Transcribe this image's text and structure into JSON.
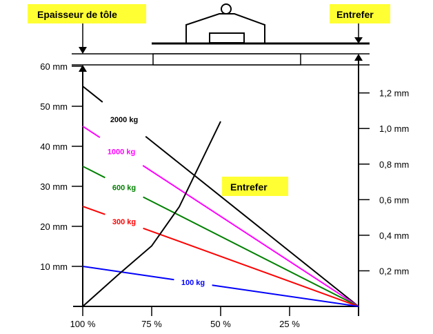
{
  "labels": {
    "sheet_thickness": "Epaisseur de tôle",
    "air_gap_top": "Entrefer",
    "air_gap_curve": "Entrefer"
  },
  "colors": {
    "label_box": "#ffff33",
    "axis": "#000000",
    "curve_2000": "#000000",
    "curve_1000": "#ff00ff",
    "curve_600": "#008000",
    "curve_300": "#ff0000",
    "curve_100": "#0000ff",
    "air_gap_curve": "#000000"
  },
  "chart_data": {
    "type": "line",
    "x": [
      "100 %",
      "75 %",
      "50 %",
      "25 %",
      ""
    ],
    "x_values": [
      100,
      75,
      50,
      25,
      0
    ],
    "xlim": [
      100,
      0
    ],
    "left_axis": {
      "ticks": [
        "10 mm",
        "20 mm",
        "30 mm",
        "40 mm",
        "50 mm",
        "60 mm"
      ],
      "tick_values": [
        10,
        20,
        30,
        40,
        50,
        60
      ],
      "ylim": [
        0,
        60
      ]
    },
    "right_axis": {
      "ticks": [
        "0,2 mm",
        "0,4 mm",
        "0,6 mm",
        "0,8 mm",
        "1,0 mm",
        "1,2 mm"
      ],
      "tick_values": [
        0.2,
        0.4,
        0.6,
        0.8,
        1.0,
        1.2
      ],
      "ylim": [
        0,
        1.35
      ]
    },
    "series": [
      {
        "name": "2000 kg",
        "color": "#000000",
        "points": [
          [
            100,
            55
          ],
          [
            0,
            0
          ]
        ],
        "label_at": 85
      },
      {
        "name": "1000 kg",
        "color": "#ff00ff",
        "points": [
          [
            100,
            45
          ],
          [
            0,
            0
          ]
        ],
        "label_at": 86
      },
      {
        "name": "600 kg",
        "color": "#008000",
        "points": [
          [
            100,
            35
          ],
          [
            0,
            0
          ]
        ],
        "label_at": 85
      },
      {
        "name": "300 kg",
        "color": "#ff0000",
        "points": [
          [
            100,
            25
          ],
          [
            0,
            0
          ]
        ],
        "label_at": 85
      },
      {
        "name": "100 kg",
        "color": "#0000ff",
        "points": [
          [
            100,
            10
          ],
          [
            0,
            0
          ]
        ],
        "label_at": 60
      }
    ],
    "air_gap_curve": {
      "axis": "right",
      "points": [
        [
          100,
          0
        ],
        [
          87,
          0.18
        ],
        [
          75,
          0.34
        ],
        [
          65,
          0.56
        ],
        [
          55,
          0.88
        ],
        [
          50,
          1.04
        ]
      ]
    },
    "grid": false
  }
}
